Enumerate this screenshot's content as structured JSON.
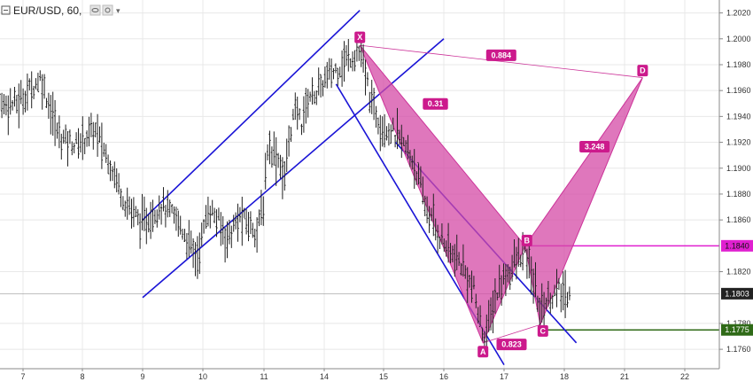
{
  "header": {
    "symbol": "EUR/USD",
    "interval": "60",
    "title": "EUR/USD, 60,"
  },
  "icons": {
    "collapse": "collapse-square-icon",
    "eye": "eye-icon",
    "settings": "settings-icon",
    "more": "chevron-down-icon"
  },
  "colors": {
    "candles": "#222222",
    "channels": "#1a14d6",
    "pattern": "#cc3399",
    "pattern_label_bg": "#cc1a8c",
    "pattern_fill": "#d44aa5",
    "level_1840": "#e020d0",
    "level_1775": "#2f6a17",
    "current_price_bg": "#222222",
    "grid": "#e8e8e8",
    "axis": "#888888"
  },
  "chart_data": {
    "type": "candlestick",
    "symbol": "EUR/USD",
    "timeframe": "60",
    "x_axis": {
      "tick_labels": [
        "7",
        "8",
        "9",
        "10",
        "11",
        "14",
        "15",
        "16",
        "17",
        "18",
        "21",
        "22"
      ]
    },
    "y_axis": {
      "ylim": [
        1.1745,
        1.203
      ],
      "tick_labels": [
        "1.1760",
        "1.1780",
        "1.1820",
        "1.1860",
        "1.1880",
        "1.1900",
        "1.1920",
        "1.1940",
        "1.1960",
        "1.1980",
        "1.2000",
        "1.2020"
      ]
    },
    "price_markers": [
      {
        "label": "1.1840",
        "value": 1.184,
        "color": "#e020d0",
        "text_color": "#111111"
      },
      {
        "label": "1.1803",
        "value": 1.1803,
        "color": "#222222",
        "text_color": "#ffffff"
      },
      {
        "label": "1.1775",
        "value": 1.1775,
        "color": "#2f6a17",
        "text_color": "#ffffff"
      }
    ],
    "pattern": {
      "name": "",
      "points": [
        {
          "label": "X",
          "day": 14.6,
          "price": 1.1995
        },
        {
          "label": "A",
          "day": 16.65,
          "price": 1.1765
        },
        {
          "label": "B",
          "day": 17.35,
          "price": 1.184
        },
        {
          "label": "C",
          "day": 17.6,
          "price": 1.1779
        },
        {
          "label": "D",
          "day": 21.3,
          "price": 1.197
        }
      ],
      "ratios": [
        {
          "label": "0.31",
          "between": "X-B"
        },
        {
          "label": "0.823",
          "between": "A-C"
        },
        {
          "label": "3.248",
          "between": "B-D"
        },
        {
          "label": "0.884",
          "between": "X-D"
        }
      ]
    },
    "levels": [
      {
        "price": 1.184,
        "from_day": 17.35,
        "color": "#e020d0"
      },
      {
        "price": 1.1775,
        "from_day": 17.6,
        "color": "#2f6a17"
      },
      {
        "price": 1.1803,
        "from_day": 6.5,
        "color": "#aaaaaa"
      }
    ],
    "channels": [
      {
        "name": "rising channel",
        "lines": [
          {
            "from": {
              "day": 9.0,
              "price": 1.186
            },
            "to": {
              "day": 14.6,
              "price": 1.2022
            }
          },
          {
            "from": {
              "day": 9.0,
              "price": 1.18
            },
            "to": {
              "day": 16.0,
              "price": 1.2
            }
          }
        ]
      },
      {
        "name": "falling channel",
        "lines": [
          {
            "from": {
              "day": 14.2,
              "price": 1.1965
            },
            "to": {
              "day": 17.0,
              "price": 1.1748
            }
          },
          {
            "from": {
              "day": 15.2,
              "price": 1.192
            },
            "to": {
              "day": 18.6,
              "price": 1.1765
            }
          }
        ]
      }
    ],
    "price_path": [
      [
        6.5,
        1.195
      ],
      [
        6.9,
        1.195
      ],
      [
        7.3,
        1.197
      ],
      [
        7.6,
        1.1925
      ],
      [
        7.9,
        1.1918
      ],
      [
        8.2,
        1.193
      ],
      [
        8.5,
        1.19
      ],
      [
        8.7,
        1.1875
      ],
      [
        9.0,
        1.1856
      ],
      [
        9.3,
        1.1872
      ],
      [
        9.6,
        1.1858
      ],
      [
        9.9,
        1.183
      ],
      [
        10.1,
        1.187
      ],
      [
        10.4,
        1.1846
      ],
      [
        10.6,
        1.1862
      ],
      [
        10.9,
        1.1852
      ],
      [
        11.2,
        1.192
      ],
      [
        11.5,
        1.1912
      ],
      [
        11.8,
        1.1905
      ],
      [
        12.0,
        1.1888
      ],
      [
        12.3,
        1.193
      ],
      [
        12.6,
        1.1945
      ],
      [
        12.9,
        1.1935
      ],
      [
        13.2,
        1.1955
      ],
      [
        13.5,
        1.1958
      ],
      [
        13.8,
        1.196
      ],
      [
        14.1,
        1.1972
      ],
      [
        14.4,
        1.1985
      ],
      [
        14.6,
        1.199
      ],
      [
        14.8,
        1.195
      ],
      [
        14.95,
        1.1935
      ],
      [
        15.1,
        1.193
      ],
      [
        15.3,
        1.192
      ],
      [
        15.5,
        1.1905
      ],
      [
        15.7,
        1.187
      ],
      [
        15.9,
        1.185
      ],
      [
        16.1,
        1.1835
      ],
      [
        16.3,
        1.1825
      ],
      [
        16.5,
        1.1805
      ],
      [
        16.6,
        1.178
      ],
      [
        16.7,
        1.177
      ],
      [
        16.85,
        1.18
      ],
      [
        17.0,
        1.1815
      ],
      [
        17.2,
        1.1828
      ],
      [
        17.35,
        1.1835
      ],
      [
        17.5,
        1.181
      ],
      [
        17.6,
        1.179
      ],
      [
        17.75,
        1.18
      ],
      [
        17.9,
        1.1805
      ],
      [
        18.1,
        1.1798
      ],
      [
        18.25,
        1.1808
      ],
      [
        18.35,
        1.1803
      ]
    ]
  }
}
